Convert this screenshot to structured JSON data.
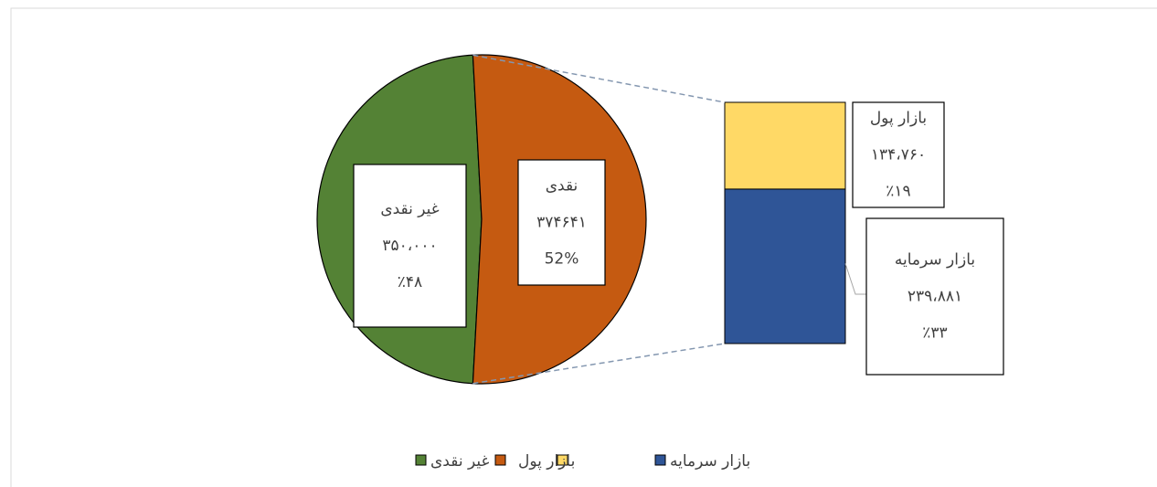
{
  "chart_data": {
    "type": "pie",
    "slices": [
      {
        "name": "غیر نقدی",
        "value": 350000,
        "value_label": "۳۵۰،۰۰۰",
        "percent_label": "٪۴۸",
        "color": "#548235"
      },
      {
        "name": "نقدی",
        "value": 374641,
        "value_label": "۳۷۴۶۴۱",
        "percent_label": "52%",
        "color": "#c55a11"
      }
    ],
    "breakdown": [
      {
        "name": "بازار پول",
        "value": 134760,
        "value_label": "۱۳۴،۷۶۰",
        "percent_label": "٪۱۹",
        "color": "#ffd966"
      },
      {
        "name": "بازار سرمایه",
        "value": 239881,
        "value_label": "۲۳۹،۸۸۱",
        "percent_label": "٪۳۳",
        "color": "#2f5597"
      }
    ]
  }
}
